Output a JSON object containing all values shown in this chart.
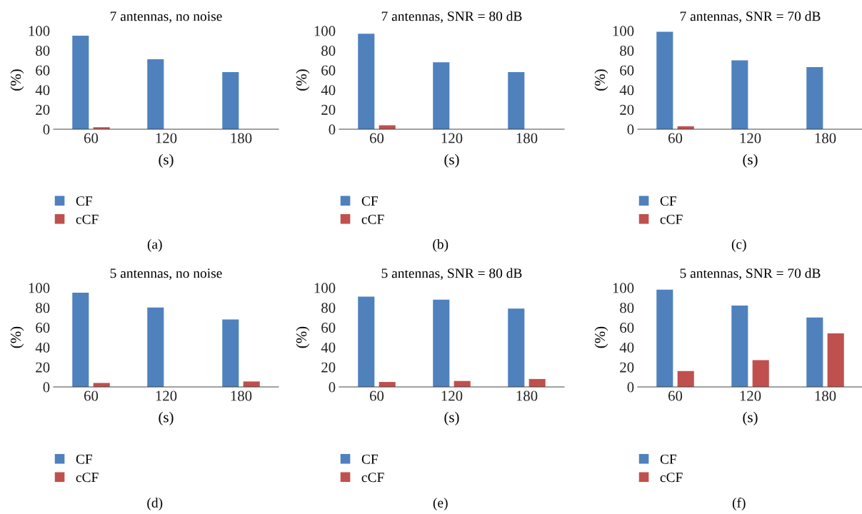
{
  "chart_data": [
    {
      "type": "bar",
      "title": "7 antennas, no noise",
      "xlabel": "(s)",
      "ylabel": "(%)",
      "categories": [
        "60",
        "120",
        "180"
      ],
      "ylim": [
        0,
        100
      ],
      "yticks": [
        0,
        20,
        40,
        60,
        80,
        100
      ],
      "legend": "bottom",
      "annotations": [
        "(a)"
      ],
      "series": [
        {
          "name": "CF",
          "color": "#4f81bd",
          "values": [
            95,
            71,
            58
          ]
        },
        {
          "name": "cCF",
          "color": "#c0504d",
          "values": [
            2,
            null,
            0
          ]
        }
      ]
    },
    {
      "type": "bar",
      "title": "7 antennas, SNR = 80 dB",
      "xlabel": "(s)",
      "ylabel": "(%)",
      "categories": [
        "60",
        "120",
        "180"
      ],
      "ylim": [
        0,
        100
      ],
      "yticks": [
        0,
        20,
        40,
        60,
        80,
        100
      ],
      "legend": "bottom",
      "annotations": [
        "(b)"
      ],
      "series": [
        {
          "name": "CF",
          "color": "#4f81bd",
          "values": [
            97,
            68,
            58
          ]
        },
        {
          "name": "cCF",
          "color": "#c0504d",
          "values": [
            4,
            0,
            0
          ]
        }
      ]
    },
    {
      "type": "bar",
      "title": "7 antennas, SNR = 70 dB",
      "xlabel": "(s)",
      "ylabel": "(%)",
      "categories": [
        "60",
        "120",
        "180"
      ],
      "ylim": [
        0,
        100
      ],
      "yticks": [
        0,
        20,
        40,
        60,
        80,
        100
      ],
      "legend": "bottom",
      "annotations": [
        "(c)"
      ],
      "series": [
        {
          "name": "CF",
          "color": "#4f81bd",
          "values": [
            99,
            70,
            63
          ]
        },
        {
          "name": "cCF",
          "color": "#c0504d",
          "values": [
            3,
            null,
            0
          ]
        }
      ]
    },
    {
      "type": "bar",
      "title": "5 antennas, no noise",
      "xlabel": "(s)",
      "ylabel": "(%)",
      "categories": [
        "60",
        "120",
        "180"
      ],
      "ylim": [
        0,
        100
      ],
      "yticks": [
        0,
        20,
        40,
        60,
        80,
        100
      ],
      "legend": "bottom",
      "annotations": [
        "(d)"
      ],
      "series": [
        {
          "name": "CF",
          "color": "#4f81bd",
          "values": [
            95,
            80,
            68
          ]
        },
        {
          "name": "cCF",
          "color": "#c0504d",
          "values": [
            4,
            null,
            5.5
          ]
        }
      ]
    },
    {
      "type": "bar",
      "title": "5 antennas, SNR = 80 dB",
      "xlabel": "(s)",
      "ylabel": "(%)",
      "categories": [
        "60",
        "120",
        "180"
      ],
      "ylim": [
        0,
        100
      ],
      "yticks": [
        0,
        20,
        40,
        60,
        80,
        100
      ],
      "legend": "bottom",
      "annotations": [
        "(e)"
      ],
      "series": [
        {
          "name": "CF",
          "color": "#4f81bd",
          "values": [
            91,
            88,
            79
          ]
        },
        {
          "name": "cCF",
          "color": "#c0504d",
          "values": [
            5,
            6,
            8
          ]
        }
      ]
    },
    {
      "type": "bar",
      "title": "5 antennas, SNR = 70 dB",
      "xlabel": "(s)",
      "ylabel": "(%)",
      "categories": [
        "60",
        "120",
        "180"
      ],
      "ylim": [
        0,
        100
      ],
      "yticks": [
        0,
        20,
        40,
        60,
        80,
        100
      ],
      "legend": "bottom",
      "annotations": [
        "(f)"
      ],
      "series": [
        {
          "name": "CF",
          "color": "#4f81bd",
          "values": [
            98,
            82,
            70
          ]
        },
        {
          "name": "cCF",
          "color": "#c0504d",
          "values": [
            16,
            27,
            54
          ]
        }
      ]
    }
  ]
}
